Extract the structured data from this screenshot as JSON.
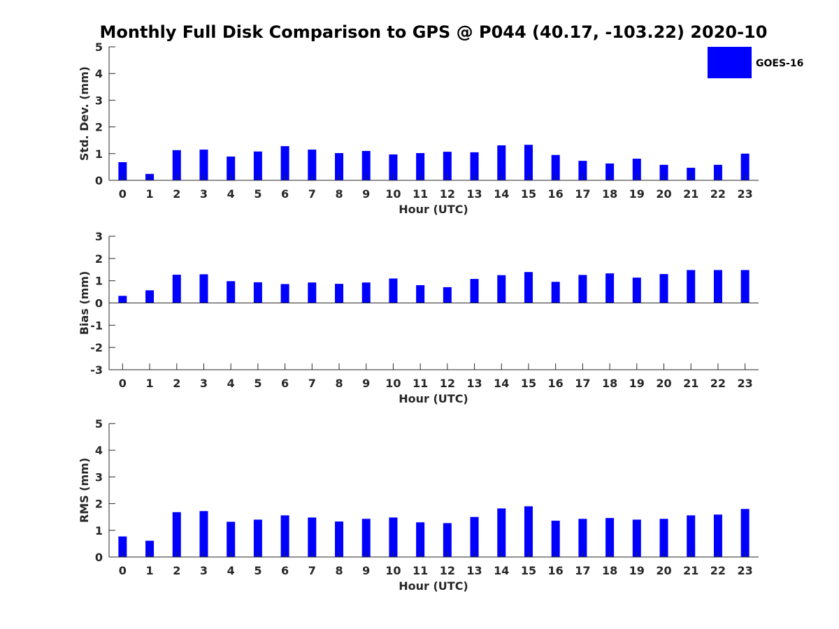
{
  "figure": {
    "title": "Monthly Full Disk Comparison to GPS @ P044 (40.17, -103.22) 2020-10",
    "bar_color": "#0000ff",
    "legend": {
      "label": "GOES-16",
      "placement": "top-right"
    }
  },
  "chart_data": [
    {
      "type": "bar",
      "series": [
        {
          "name": "GOES-16",
          "values": [
            0.68,
            0.24,
            1.13,
            1.15,
            0.89,
            1.08,
            1.28,
            1.15,
            1.02,
            1.1,
            0.97,
            1.02,
            1.07,
            1.05,
            1.31,
            1.33,
            0.95,
            0.73,
            0.63,
            0.81,
            0.58,
            0.47,
            0.58,
            1.0
          ]
        }
      ],
      "categories": [
        "0",
        "1",
        "2",
        "3",
        "4",
        "5",
        "6",
        "7",
        "8",
        "9",
        "10",
        "11",
        "12",
        "13",
        "14",
        "15",
        "16",
        "17",
        "18",
        "19",
        "20",
        "21",
        "22",
        "23"
      ],
      "xlabel": "Hour (UTC)",
      "ylabel": "Std. Dev. (mm)",
      "ylim": [
        0,
        5
      ],
      "yticks": [
        "0",
        "1",
        "2",
        "3",
        "4",
        "5"
      ],
      "grid": false
    },
    {
      "type": "bar",
      "series": [
        {
          "name": "GOES-16",
          "values": [
            0.32,
            0.57,
            1.27,
            1.29,
            0.98,
            0.93,
            0.85,
            0.92,
            0.86,
            0.92,
            1.1,
            0.8,
            0.71,
            1.08,
            1.25,
            1.39,
            0.95,
            1.26,
            1.33,
            1.14,
            1.3,
            1.48,
            1.48,
            1.48
          ]
        }
      ],
      "categories": [
        "0",
        "1",
        "2",
        "3",
        "4",
        "5",
        "6",
        "7",
        "8",
        "9",
        "10",
        "11",
        "12",
        "13",
        "14",
        "15",
        "16",
        "17",
        "18",
        "19",
        "20",
        "21",
        "22",
        "23"
      ],
      "xlabel": "Hour (UTC)",
      "ylabel": "Bias (mm)",
      "ylim": [
        -3,
        3
      ],
      "yticks": [
        "-3",
        "-2",
        "-1",
        "0",
        "1",
        "2",
        "3"
      ],
      "grid": false
    },
    {
      "type": "bar",
      "series": [
        {
          "name": "GOES-16",
          "values": [
            0.77,
            0.61,
            1.68,
            1.72,
            1.32,
            1.4,
            1.56,
            1.48,
            1.33,
            1.43,
            1.48,
            1.3,
            1.27,
            1.5,
            1.82,
            1.9,
            1.36,
            1.43,
            1.46,
            1.4,
            1.43,
            1.56,
            1.59,
            1.8
          ]
        }
      ],
      "categories": [
        "0",
        "1",
        "2",
        "3",
        "4",
        "5",
        "6",
        "7",
        "8",
        "9",
        "10",
        "11",
        "12",
        "13",
        "14",
        "15",
        "16",
        "17",
        "18",
        "19",
        "20",
        "21",
        "22",
        "23"
      ],
      "xlabel": "Hour (UTC)",
      "ylabel": "RMS (mm)",
      "ylim": [
        0,
        5
      ],
      "yticks": [
        "0",
        "1",
        "2",
        "3",
        "4",
        "5"
      ],
      "grid": false
    }
  ]
}
